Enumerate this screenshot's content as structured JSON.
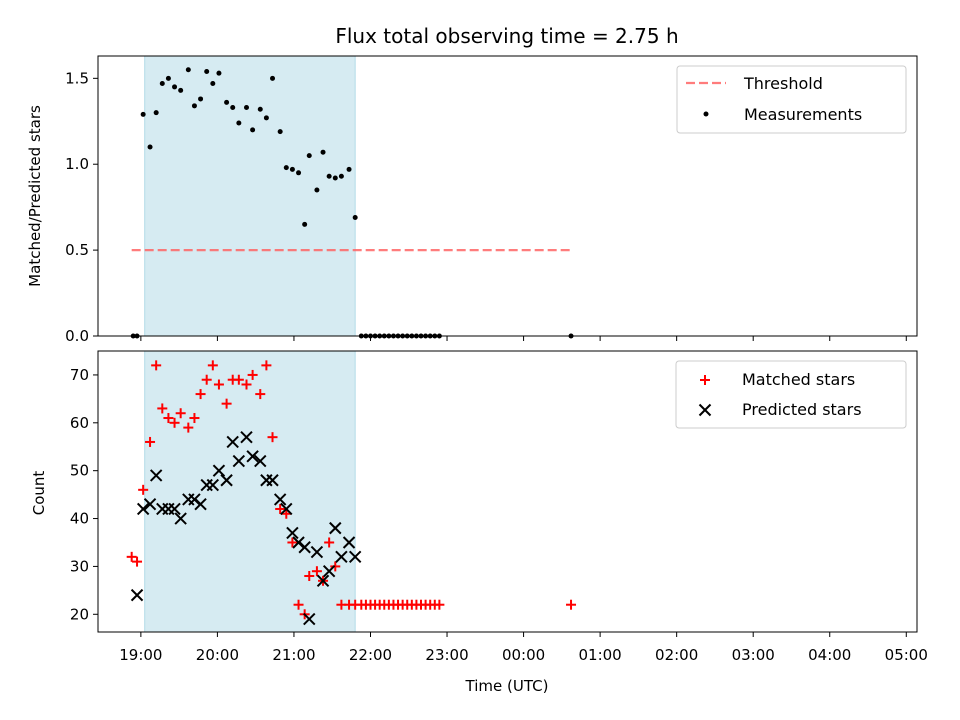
{
  "chart_data": [
    {
      "type": "scatter",
      "title": "Flux total observing time = 2.75 h",
      "xlabel": "",
      "ylabel": "Matched/Predicted stars",
      "ylim": [
        0,
        1.63
      ],
      "yticks": [
        "0.0",
        "0.5",
        "1.0",
        "1.5"
      ],
      "ytick_values": [
        0,
        0.5,
        1.0,
        1.5
      ],
      "shaded_region": {
        "start_h": 19.05,
        "end_h": 21.8,
        "color": "#add8e6"
      },
      "threshold": {
        "label": "Threshold",
        "value": 0.5,
        "x_start_h": 18.88,
        "x_end_h": 24.62,
        "color": "#ff6666"
      },
      "series": [
        {
          "name": "Measurements",
          "marker": "dot",
          "color": "#000000",
          "x": [
            18.9,
            18.95,
            19.03,
            19.12,
            19.2,
            19.28,
            19.36,
            19.44,
            19.52,
            19.62,
            19.7,
            19.78,
            19.86,
            19.94,
            20.02,
            20.12,
            20.2,
            20.28,
            20.38,
            20.46,
            20.56,
            20.64,
            20.72,
            20.82,
            20.9,
            20.98,
            21.06,
            21.14,
            21.2,
            21.3,
            21.38,
            21.46,
            21.54,
            21.62,
            21.72,
            21.8,
            21.88,
            21.94,
            22.0,
            22.06,
            22.12,
            22.18,
            22.24,
            22.3,
            22.36,
            22.42,
            22.48,
            22.54,
            22.6,
            22.66,
            22.72,
            22.78,
            22.84,
            22.9,
            24.62
          ],
          "y": [
            0,
            0,
            1.29,
            1.1,
            1.3,
            1.47,
            1.5,
            1.45,
            1.43,
            1.55,
            1.34,
            1.38,
            1.54,
            1.47,
            1.53,
            1.36,
            1.33,
            1.24,
            1.33,
            1.2,
            1.32,
            1.27,
            1.5,
            1.19,
            0.98,
            0.97,
            0.95,
            0.65,
            1.05,
            0.85,
            1.07,
            0.93,
            0.92,
            0.93,
            0.97,
            0.69,
            0,
            0,
            0,
            0,
            0,
            0,
            0,
            0,
            0,
            0,
            0,
            0,
            0,
            0,
            0,
            0,
            0,
            0,
            0
          ]
        }
      ],
      "legend": [
        "Threshold",
        "Measurements"
      ],
      "legend_position": "top-right"
    },
    {
      "type": "scatter",
      "title": "",
      "xlabel": "Time (UTC)",
      "ylabel": "Count",
      "ylim": [
        16.3,
        75
      ],
      "yticks": [
        "20",
        "30",
        "40",
        "50",
        "60",
        "70"
      ],
      "ytick_values": [
        20,
        30,
        40,
        50,
        60,
        70
      ],
      "xlim_h": [
        18.44,
        29.14
      ],
      "xticks": [
        "19:00",
        "20:00",
        "21:00",
        "22:00",
        "23:00",
        "00:00",
        "01:00",
        "02:00",
        "03:00",
        "04:00",
        "05:00"
      ],
      "xtick_values_h": [
        19,
        20,
        21,
        22,
        23,
        24,
        25,
        26,
        27,
        28,
        29
      ],
      "series": [
        {
          "name": "Matched stars",
          "marker": "plus",
          "color": "#ff0000",
          "x": [
            18.88,
            18.95,
            19.03,
            19.12,
            19.2,
            19.28,
            19.36,
            19.44,
            19.52,
            19.62,
            19.7,
            19.78,
            19.86,
            19.94,
            20.02,
            20.12,
            20.2,
            20.28,
            20.38,
            20.46,
            20.56,
            20.64,
            20.72,
            20.82,
            20.9,
            20.98,
            21.06,
            21.14,
            21.2,
            21.3,
            21.38,
            21.46,
            21.54,
            21.62,
            21.72,
            21.8,
            21.88,
            21.94,
            22.0,
            22.06,
            22.12,
            22.18,
            22.24,
            22.3,
            22.36,
            22.42,
            22.48,
            22.54,
            22.6,
            22.66,
            22.72,
            22.78,
            22.84,
            22.9,
            24.62
          ],
          "y": [
            32,
            31,
            46,
            56,
            72,
            63,
            61,
            60,
            62,
            59,
            61,
            66,
            69,
            72,
            68,
            64,
            69,
            69,
            68,
            70,
            66,
            72,
            57,
            42,
            41,
            35,
            22,
            20,
            28,
            29,
            27,
            35,
            30,
            22,
            22,
            22,
            22,
            22,
            22,
            22,
            22,
            22,
            22,
            22,
            22,
            22,
            22,
            22,
            22,
            22,
            22,
            22,
            22,
            22,
            22
          ]
        },
        {
          "name": "Predicted stars",
          "marker": "x",
          "color": "#000000",
          "x": [
            18.95,
            19.03,
            19.12,
            19.2,
            19.28,
            19.36,
            19.44,
            19.52,
            19.62,
            19.7,
            19.78,
            19.86,
            19.94,
            20.02,
            20.12,
            20.2,
            20.28,
            20.38,
            20.46,
            20.56,
            20.64,
            20.72,
            20.82,
            20.9,
            20.98,
            21.06,
            21.14,
            21.2,
            21.3,
            21.38,
            21.46,
            21.54,
            21.62,
            21.72,
            21.8
          ],
          "y": [
            24,
            42,
            43,
            49,
            42,
            42,
            42,
            40,
            44,
            44,
            43,
            47,
            47,
            50,
            48,
            56,
            52,
            57,
            53,
            52,
            48,
            48,
            44,
            42,
            37,
            35,
            34,
            19,
            33,
            27,
            29,
            38,
            32,
            35,
            32
          ]
        }
      ],
      "legend": [
        "Matched stars",
        "Predicted stars"
      ],
      "legend_position": "top-right"
    }
  ]
}
